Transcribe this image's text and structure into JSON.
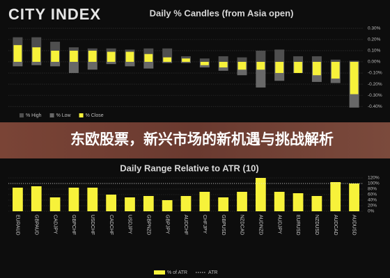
{
  "logo": "CITY INDEX",
  "banner": "东欧股票，新兴市场的新机遇与挑战解析",
  "chart_data": [
    {
      "type": "candle",
      "title": "Daily % Candles (from Asia open)",
      "series": [
        {
          "name": "% High",
          "color": "#4f4f4f",
          "values": [
            0.22,
            0.22,
            0.18,
            0.13,
            0.12,
            0.12,
            0.11,
            0.12,
            0.12,
            0.05,
            0.03,
            0.05,
            0.04,
            0.1,
            0.11,
            0.05,
            0.05,
            0.02,
            0.01
          ]
        },
        {
          "name": "% Low",
          "color": "#686868",
          "values": [
            -0.04,
            -0.03,
            -0.04,
            -0.1,
            -0.07,
            -0.02,
            -0.04,
            -0.06,
            -0.01,
            -0.01,
            -0.05,
            -0.08,
            -0.12,
            -0.23,
            -0.17,
            -0.1,
            -0.18,
            -0.19,
            -0.41
          ]
        },
        {
          "name": "% Close",
          "color": "#f7f23a",
          "values": [
            0.15,
            0.13,
            0.1,
            0.1,
            0.1,
            0.09,
            0.09,
            0.07,
            0.04,
            0.03,
            -0.03,
            -0.05,
            -0.07,
            -0.07,
            -0.1,
            -0.1,
            -0.12,
            -0.15,
            -0.29
          ]
        }
      ],
      "ylim": [
        -0.43,
        0.33
      ],
      "yticks": [
        {
          "value": 0.3,
          "label": "0.30%"
        },
        {
          "value": 0.2,
          "label": "0.20%"
        },
        {
          "value": 0.1,
          "label": "0.10%"
        },
        {
          "value": 0,
          "label": "0.00%"
        },
        {
          "value": -0.1,
          "label": "-0.10%"
        },
        {
          "value": -0.2,
          "label": "-0.20%"
        },
        {
          "value": -0.3,
          "label": "-0.30%"
        },
        {
          "value": -0.4,
          "label": "-0.40%"
        }
      ],
      "grid": true
    },
    {
      "type": "bar",
      "title": "Daily Range Relative to ATR (10)",
      "categories": [
        "EURAUD",
        "GBPAUD",
        "CADJPY",
        "GBPCHF",
        "USDCHF",
        "CADCHF",
        "USDJPY",
        "GBPNZD",
        "GBPJPY",
        "AUDCHF",
        "CHFJPY",
        "GBPUSD",
        "NZDCAD",
        "AUDNZD",
        "AUDJPY",
        "EURUSD",
        "NZDUSD",
        "AUDCAD",
        "AUDUSD"
      ],
      "series": [
        {
          "name": "% of ATR",
          "color": "#f7f23a",
          "values": [
            85,
            90,
            50,
            85,
            85,
            60,
            50,
            55,
            40,
            55,
            70,
            50,
            70,
            120,
            70,
            65,
            55,
            105,
            100
          ]
        }
      ],
      "reference": {
        "name": "ATR",
        "value": 100
      },
      "ylim": [
        0,
        125
      ],
      "yticks": [
        {
          "value": 0,
          "label": "0%"
        },
        {
          "value": 20,
          "label": "20%"
        },
        {
          "value": 40,
          "label": "40%"
        },
        {
          "value": 60,
          "label": "60%"
        },
        {
          "value": 80,
          "label": "80%"
        },
        {
          "value": 100,
          "label": "100%"
        },
        {
          "value": 120,
          "label": "120%"
        }
      ],
      "grid": true
    }
  ]
}
